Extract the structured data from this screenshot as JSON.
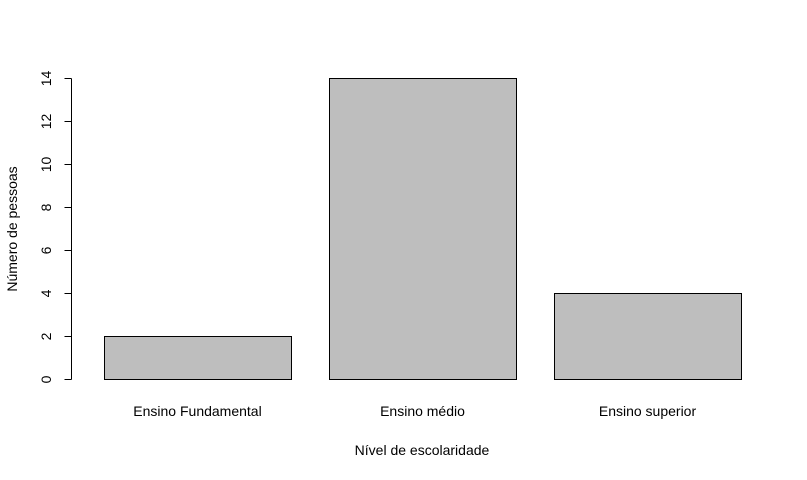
{
  "chart_data": {
    "type": "bar",
    "title": "",
    "xlabel": "Nível de escolaridade",
    "ylabel": "Número de pessoas",
    "categories": [
      "Ensino Fundamental",
      "Ensino médio",
      "Ensino superior"
    ],
    "values": [
      2,
      14,
      4
    ],
    "ylim": [
      0,
      14
    ],
    "yticks": [
      0,
      2,
      4,
      6,
      8,
      10,
      12,
      14
    ],
    "grid": false,
    "bar_color": "#bebebe",
    "bar_edge_color": "#000000"
  }
}
